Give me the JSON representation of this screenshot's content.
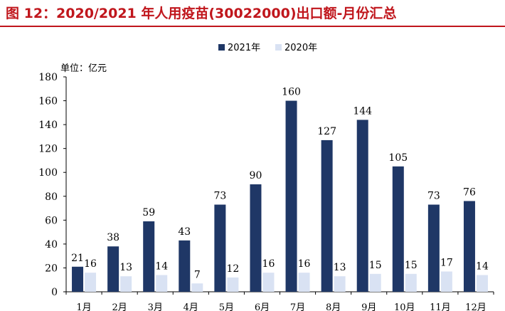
{
  "title": "图 12：2020/2021 年人用疫苗(30022000)出口额-月份汇总",
  "chart_data": {
    "type": "bar",
    "unit_label": "单位：亿元",
    "categories": [
      "1月",
      "2月",
      "3月",
      "4月",
      "5月",
      "6月",
      "7月",
      "8月",
      "9月",
      "10月",
      "11月",
      "12月"
    ],
    "series": [
      {
        "name": "2021年",
        "values": [
          21,
          38,
          59,
          43,
          73,
          90,
          160,
          127,
          144,
          105,
          73,
          76
        ],
        "color": "#1f3766"
      },
      {
        "name": "2020年",
        "values": [
          16,
          13,
          14,
          7,
          12,
          16,
          16,
          13,
          15,
          15,
          17,
          14
        ],
        "color": "#d9e2f3"
      }
    ],
    "ylim": [
      0,
      180
    ],
    "yticks": [
      0,
      20,
      40,
      60,
      80,
      100,
      120,
      140,
      160,
      180
    ],
    "legend_position": "top-center",
    "grid": false
  }
}
